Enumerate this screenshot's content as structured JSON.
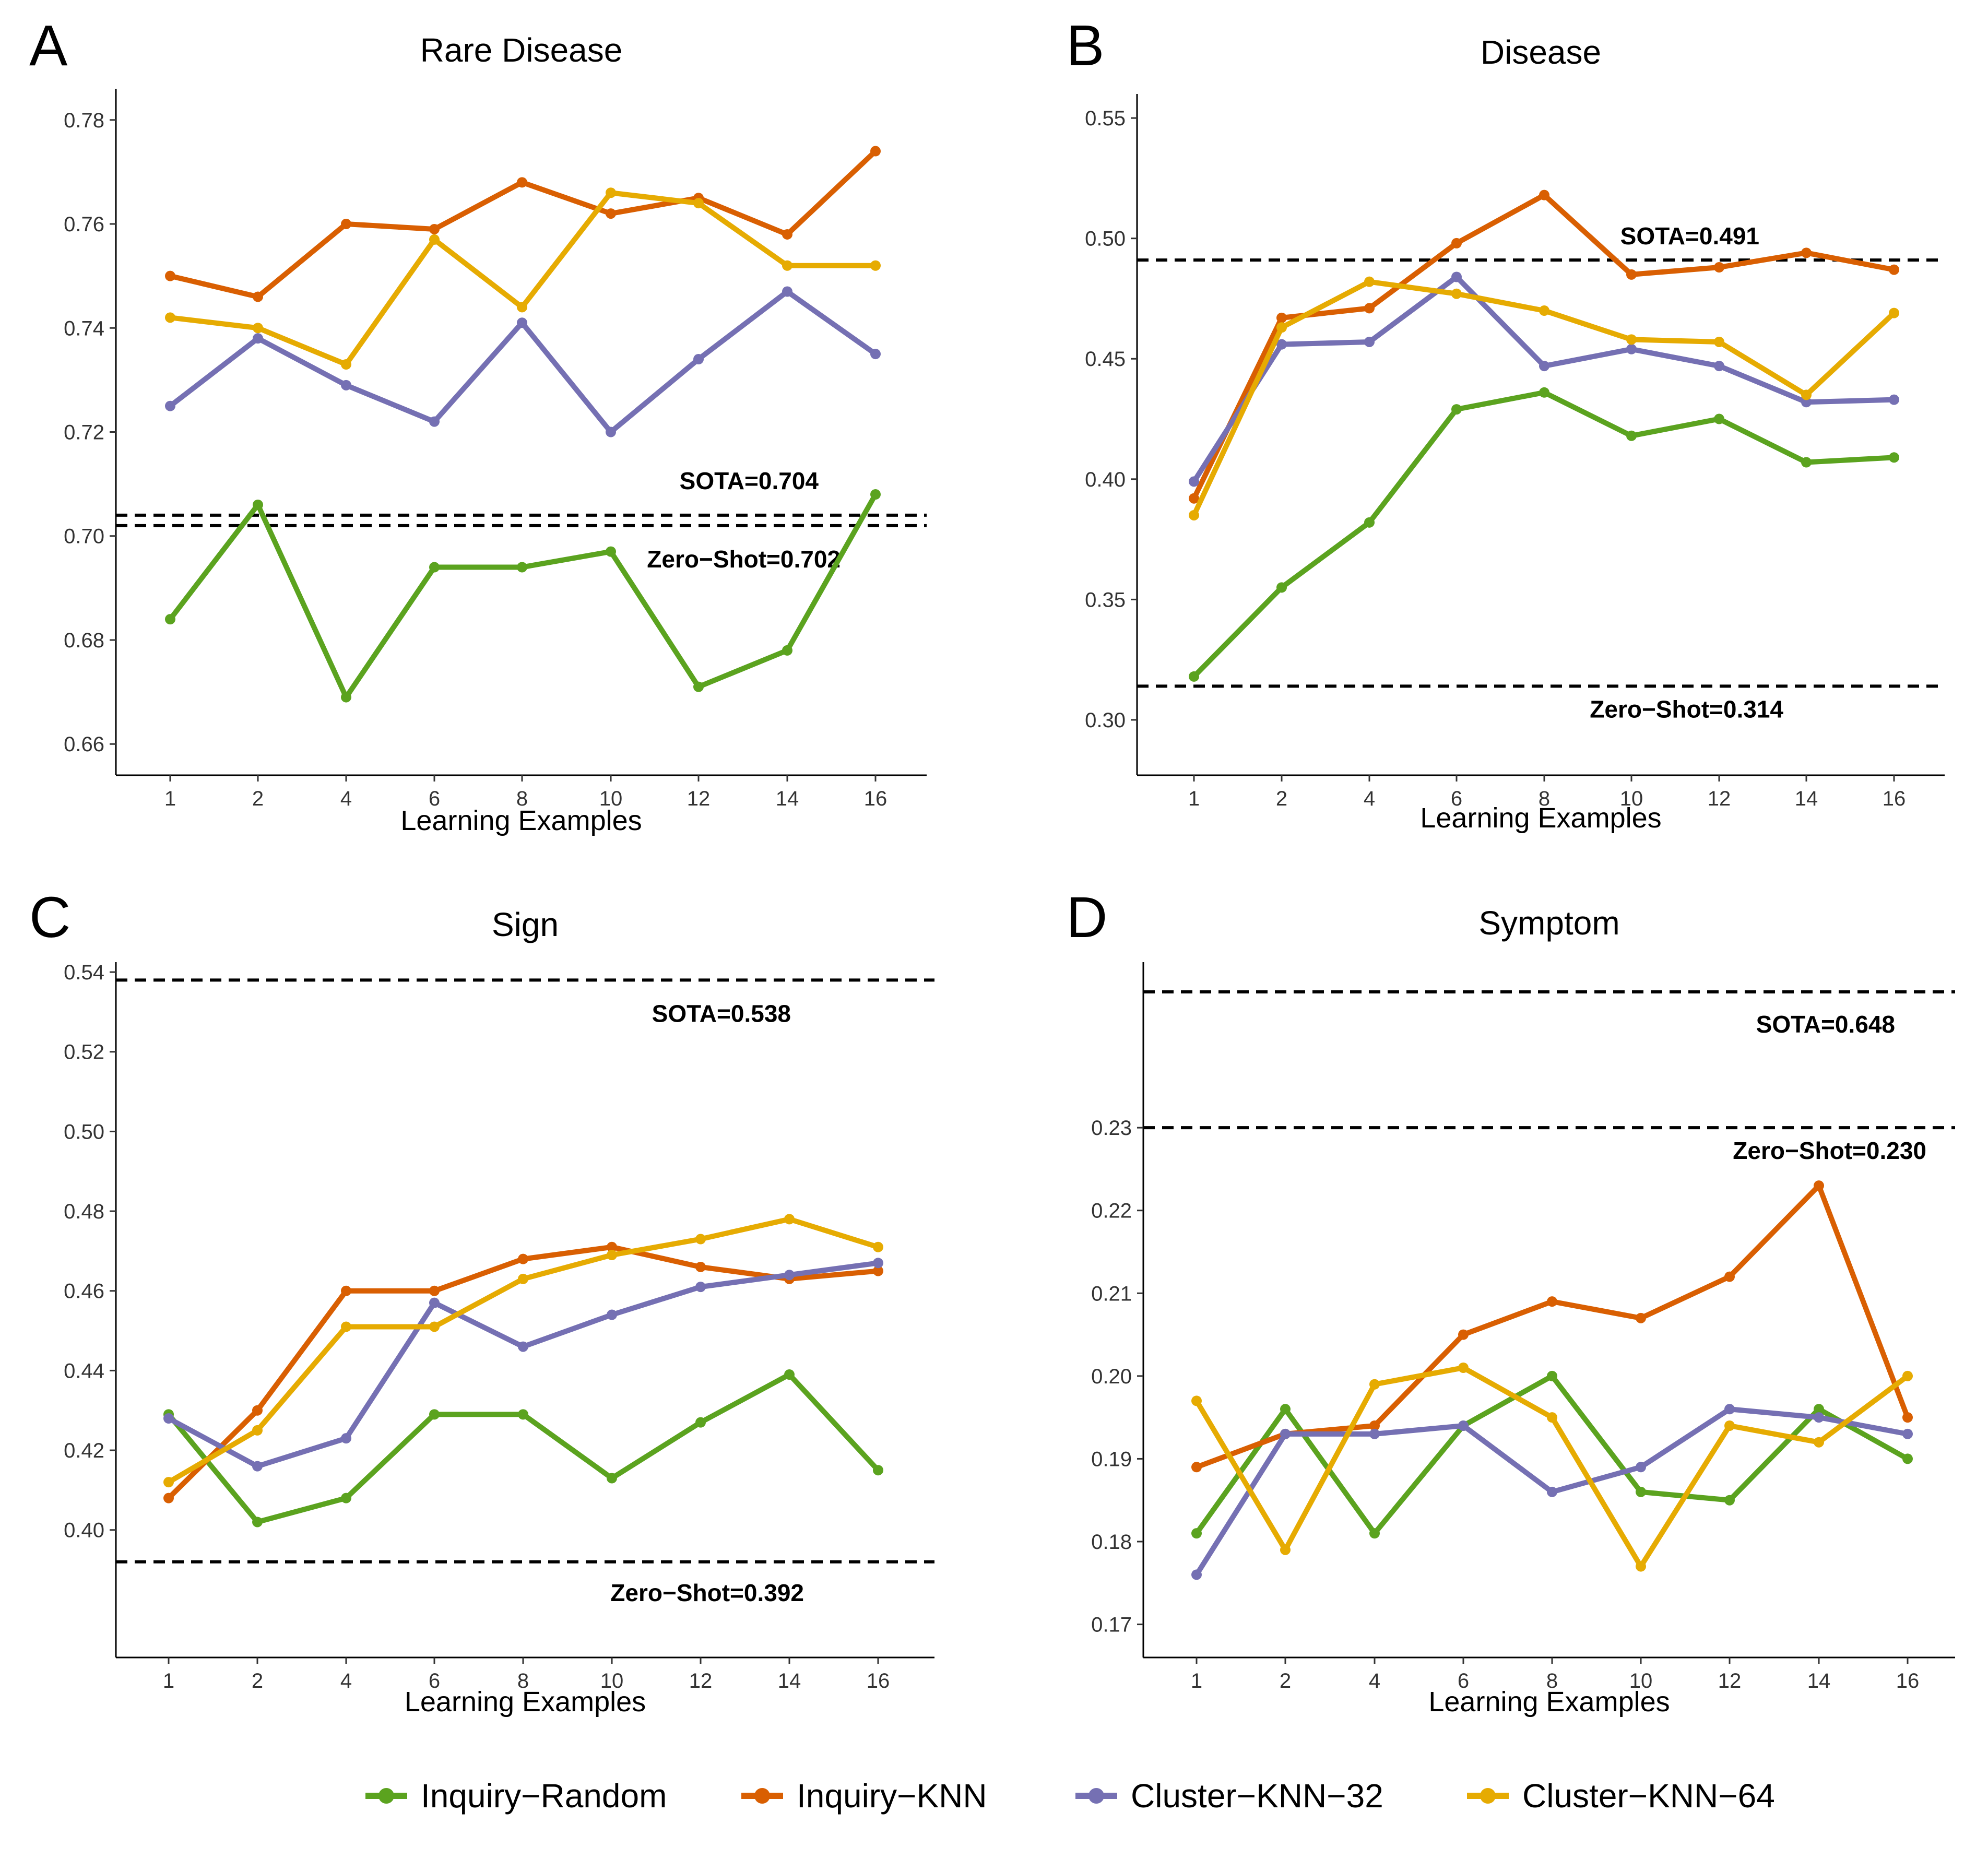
{
  "chart_data": [
    {
      "panel": "A",
      "type": "line",
      "title": "Rare Disease",
      "xlabel": "Learning Examples",
      "ylabel": "",
      "categories": [
        "1",
        "2",
        "4",
        "6",
        "8",
        "10",
        "12",
        "14",
        "16"
      ],
      "ylim": [
        0.654,
        0.786
      ],
      "yticks": [
        0.66,
        0.68,
        0.7,
        0.72,
        0.74,
        0.76,
        0.78
      ],
      "ytick_labels": [
        "0.66",
        "0.68",
        "0.70",
        "0.72",
        "0.74",
        "0.76",
        "0.78"
      ],
      "series": [
        {
          "name": "Inquiry-Random",
          "values": [
            0.684,
            0.706,
            0.669,
            0.694,
            0.694,
            0.697,
            0.671,
            0.678,
            0.708
          ]
        },
        {
          "name": "Inquiry-KNN",
          "values": [
            0.75,
            0.746,
            0.76,
            0.759,
            0.768,
            0.762,
            0.765,
            0.758,
            0.774
          ]
        },
        {
          "name": "Cluster-KNN-32",
          "values": [
            0.725,
            0.738,
            0.729,
            0.722,
            0.741,
            0.72,
            0.734,
            0.747,
            0.735
          ]
        },
        {
          "name": "Cluster-KNN-64",
          "values": [
            0.742,
            0.74,
            0.733,
            0.757,
            0.744,
            0.766,
            0.764,
            0.752,
            0.752
          ]
        }
      ],
      "references": [
        {
          "label": "SOTA=0.704",
          "value": 0.704,
          "label_side": "above"
        },
        {
          "label": "Zero−Shot=0.702",
          "value": 0.702,
          "label_side": "below"
        }
      ]
    },
    {
      "panel": "B",
      "type": "line",
      "title": "Disease",
      "xlabel": "Learning Examples",
      "ylabel": "",
      "categories": [
        "1",
        "2",
        "4",
        "6",
        "8",
        "10",
        "12",
        "14",
        "16"
      ],
      "ylim": [
        0.277,
        0.56
      ],
      "yticks": [
        0.3,
        0.35,
        0.4,
        0.45,
        0.5,
        0.55
      ],
      "ytick_labels": [
        "0.30",
        "0.35",
        "0.40",
        "0.45",
        "0.50",
        "0.55"
      ],
      "series": [
        {
          "name": "Inquiry-Random",
          "values": [
            0.318,
            0.355,
            0.382,
            0.429,
            0.436,
            0.418,
            0.425,
            0.407,
            0.409
          ]
        },
        {
          "name": "Inquiry-KNN",
          "values": [
            0.392,
            0.467,
            0.471,
            0.498,
            0.518,
            0.485,
            0.488,
            0.494,
            0.487
          ]
        },
        {
          "name": "Cluster-KNN-32",
          "values": [
            0.399,
            0.456,
            0.457,
            0.484,
            0.447,
            0.454,
            0.447,
            0.432,
            0.433
          ]
        },
        {
          "name": "Cluster-KNN-64",
          "values": [
            0.385,
            0.463,
            0.482,
            0.477,
            0.47,
            0.458,
            0.457,
            0.435,
            0.469
          ]
        }
      ],
      "references": [
        {
          "label": "SOTA=0.491",
          "value": 0.491,
          "label_side": "above"
        },
        {
          "label": "Zero−Shot=0.314",
          "value": 0.314,
          "label_side": "below"
        }
      ]
    },
    {
      "panel": "C",
      "type": "line",
      "title": "Sign",
      "xlabel": "Learning Examples",
      "ylabel": "",
      "categories": [
        "1",
        "2",
        "4",
        "6",
        "8",
        "10",
        "12",
        "14",
        "16"
      ],
      "ylim": [
        0.368,
        0.5425
      ],
      "yticks": [
        0.4,
        0.42,
        0.44,
        0.46,
        0.48,
        0.5,
        0.52,
        0.54
      ],
      "ytick_labels": [
        "0.40",
        "0.42",
        "0.44",
        "0.46",
        "0.48",
        "0.50",
        "0.52",
        "0.54"
      ],
      "series": [
        {
          "name": "Inquiry-Random",
          "values": [
            0.429,
            0.402,
            0.408,
            0.429,
            0.429,
            0.413,
            0.427,
            0.439,
            0.415
          ]
        },
        {
          "name": "Inquiry-KNN",
          "values": [
            0.408,
            0.43,
            0.46,
            0.46,
            0.468,
            0.471,
            0.466,
            0.463,
            0.465
          ]
        },
        {
          "name": "Cluster-KNN-32",
          "values": [
            0.428,
            0.416,
            0.423,
            0.457,
            0.446,
            0.454,
            0.461,
            0.464,
            0.467
          ]
        },
        {
          "name": "Cluster-KNN-64",
          "values": [
            0.412,
            0.425,
            0.451,
            0.451,
            0.463,
            0.469,
            0.473,
            0.478,
            0.471
          ]
        }
      ],
      "references": [
        {
          "label": "SOTA=0.538",
          "value": 0.538,
          "label_side": "below"
        },
        {
          "label": "Zero−Shot=0.392",
          "value": 0.392,
          "label_side": "below"
        }
      ]
    },
    {
      "panel": "D",
      "type": "line",
      "title": "Symptom",
      "xlabel": "Learning Examples",
      "ylabel": "",
      "categories": [
        "1",
        "2",
        "4",
        "6",
        "8",
        "10",
        "12",
        "14",
        "16"
      ],
      "ylim": [
        0.166,
        0.25
      ],
      "yticks": [
        0.17,
        0.18,
        0.19,
        0.2,
        0.21,
        0.22,
        0.23
      ],
      "ytick_labels": [
        "0.17",
        "0.18",
        "0.19",
        "0.20",
        "0.21",
        "0.22",
        "0.23"
      ],
      "axis_note": "SOTA=0.648 line is drawn at the top of the plot (off-scale)",
      "series": [
        {
          "name": "Inquiry-Random",
          "values": [
            0.181,
            0.196,
            0.181,
            0.194,
            0.2,
            0.186,
            0.185,
            0.196,
            0.19
          ]
        },
        {
          "name": "Inquiry-KNN",
          "values": [
            0.189,
            0.193,
            0.194,
            0.205,
            0.209,
            0.207,
            0.212,
            0.223,
            0.195
          ]
        },
        {
          "name": "Cluster-KNN-32",
          "values": [
            0.176,
            0.193,
            0.193,
            0.194,
            0.186,
            0.189,
            0.196,
            0.195,
            0.193
          ]
        },
        {
          "name": "Cluster-KNN-64",
          "values": [
            0.197,
            0.179,
            0.199,
            0.201,
            0.195,
            0.177,
            0.194,
            0.192,
            0.2
          ]
        }
      ],
      "references": [
        {
          "label": "SOTA=0.648",
          "value": 0.648,
          "label_side": "below",
          "offscale_top": true
        },
        {
          "label": "Zero−Shot=0.230",
          "value": 0.23,
          "label_side": "below"
        }
      ]
    }
  ],
  "legend": [
    {
      "name": "Inquiry-Random",
      "label": "Inquiry−Random",
      "color": "#5ba31f"
    },
    {
      "name": "Inquiry-KNN",
      "label": "Inquiry−KNN",
      "color": "#d95f02"
    },
    {
      "name": "Cluster-KNN-32",
      "label": "Cluster−KNN−32",
      "color": "#7570b3"
    },
    {
      "name": "Cluster-KNN-64",
      "label": "Cluster−KNN−64",
      "color": "#e6ab02"
    }
  ],
  "colors": {
    "Inquiry-Random": "#5ba31f",
    "Inquiry-KNN": "#d95f02",
    "Cluster-KNN-32": "#7570b3",
    "Cluster-KNN-64": "#e6ab02",
    "reference_line": "#000000",
    "axis": "#000000"
  }
}
